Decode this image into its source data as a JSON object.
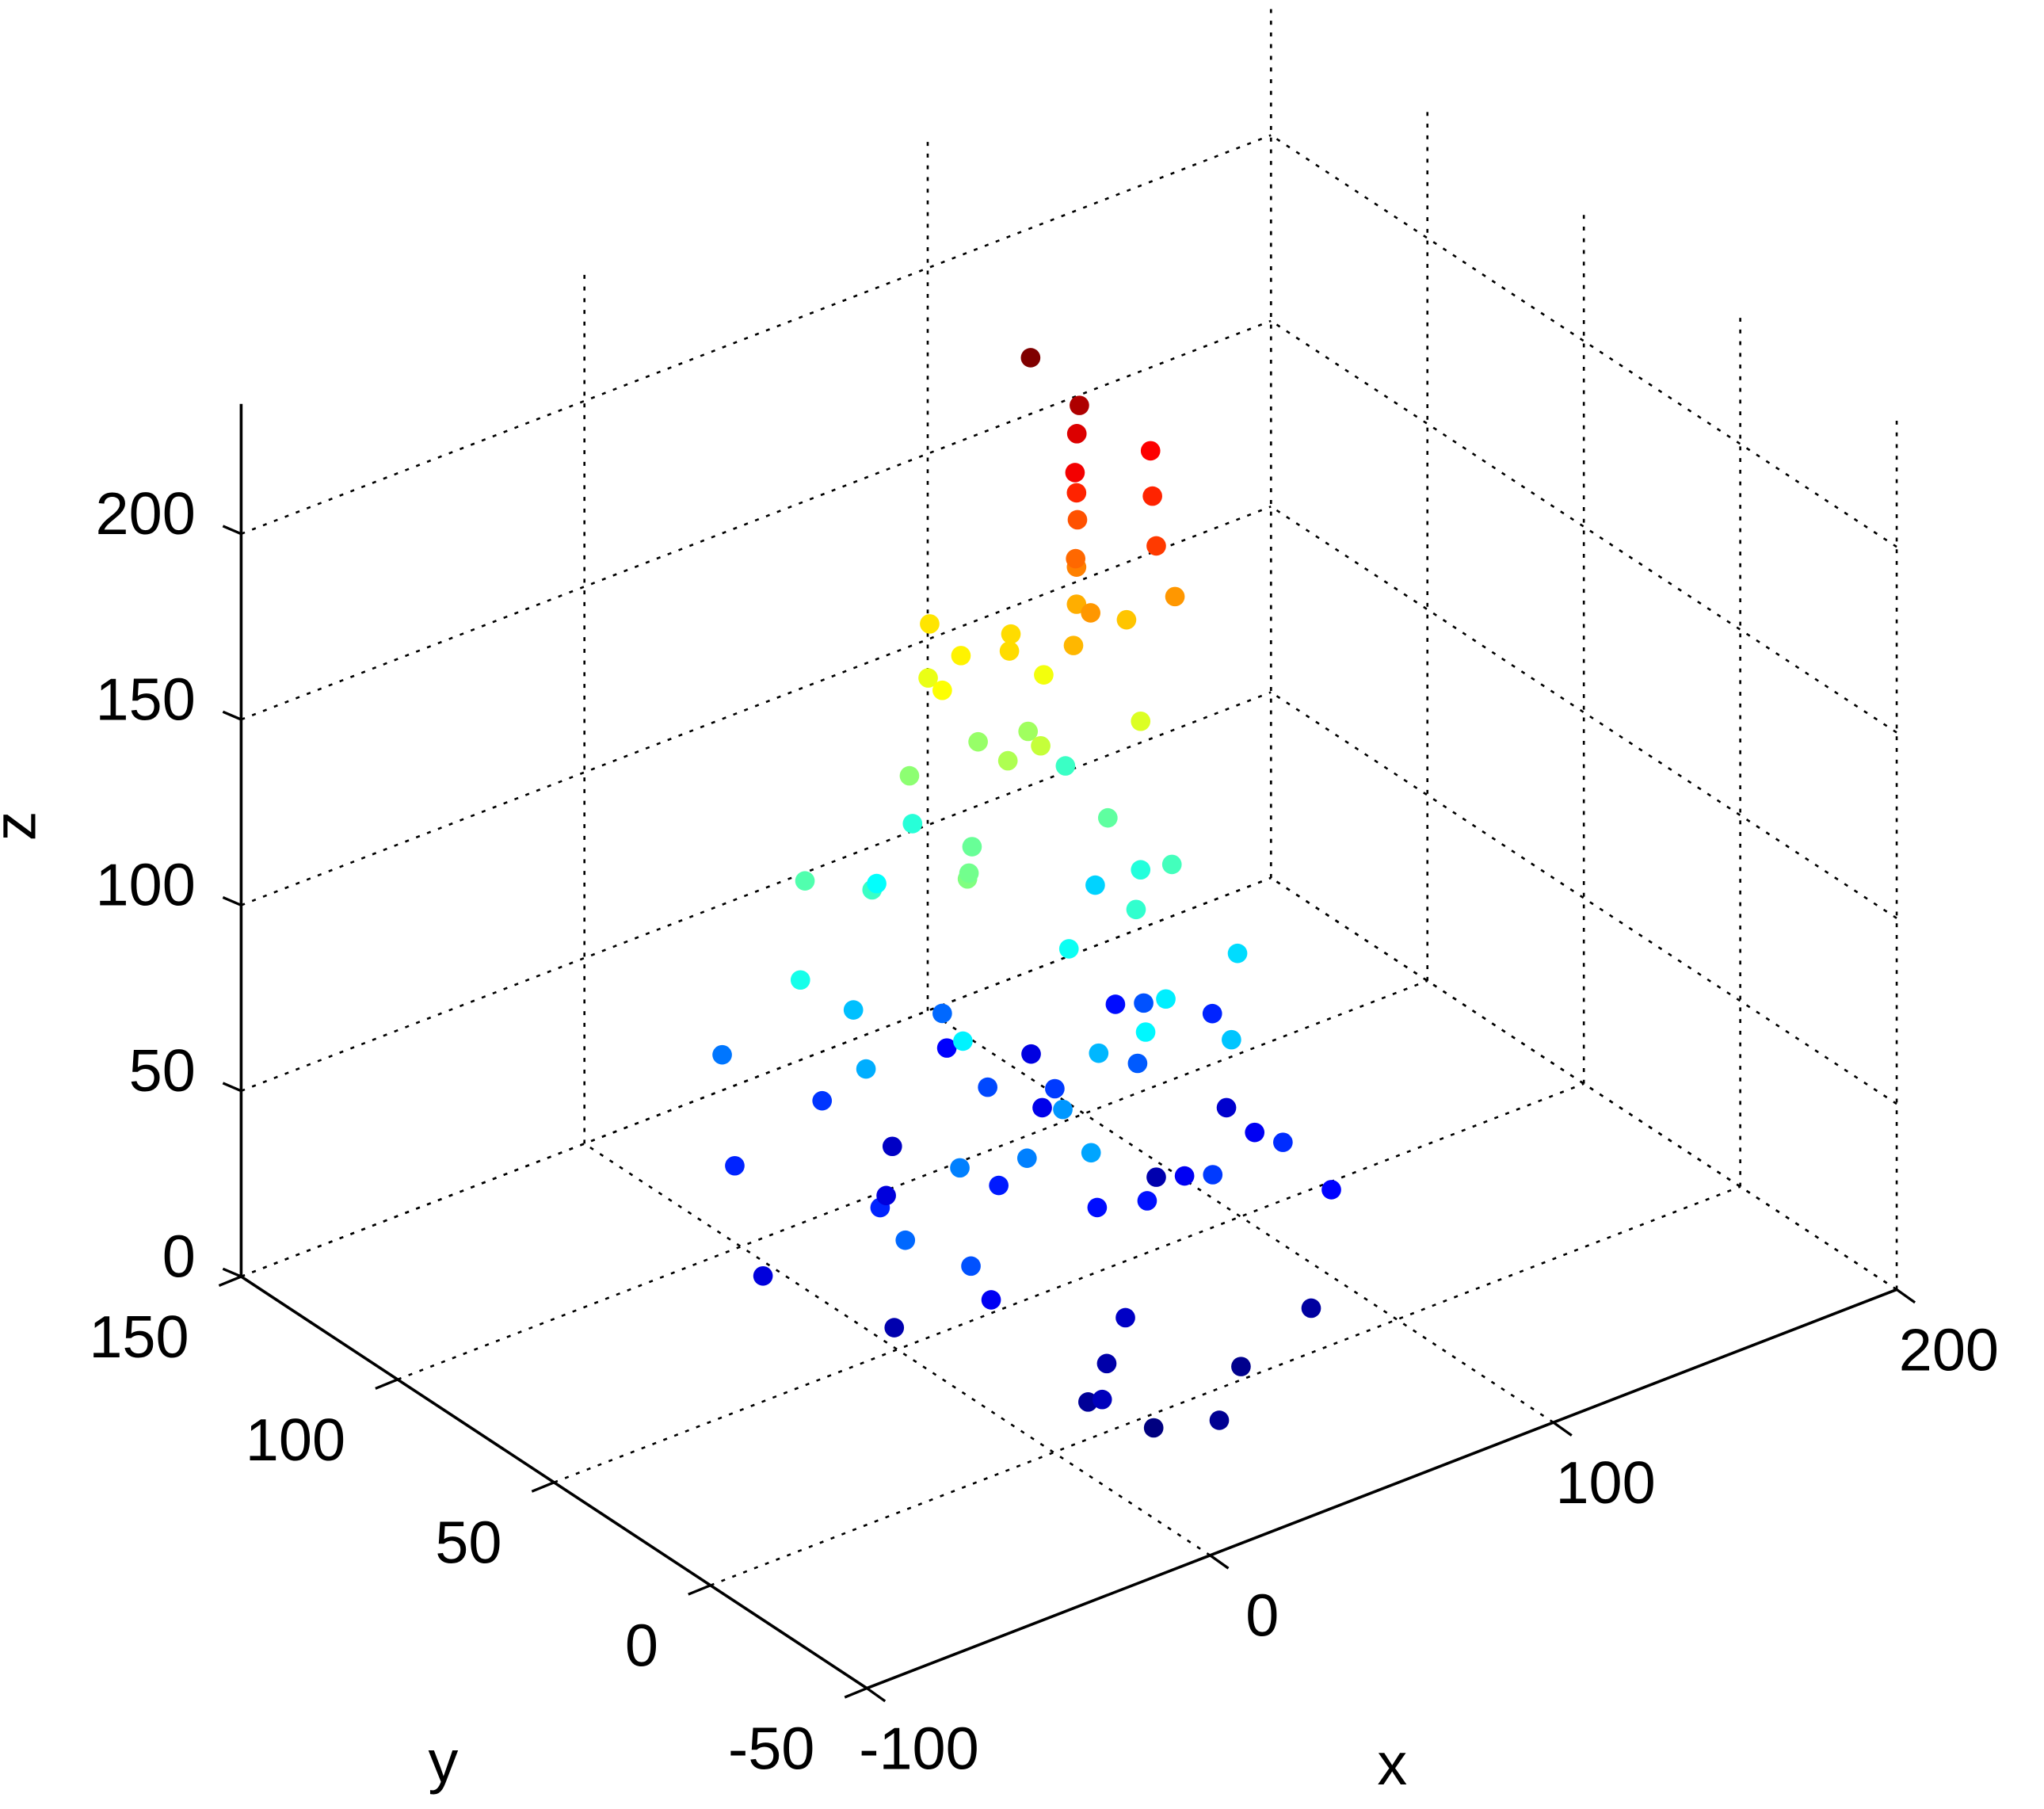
{
  "chart_data": {
    "type": "scatter3d",
    "xlabel": "x",
    "ylabel": "y",
    "zlabel": "z",
    "colormap": "jet",
    "grid": true,
    "xlim": [
      -100,
      200
    ],
    "xticks": [
      -100,
      0,
      100,
      200
    ],
    "ylim": [
      -50,
      150
    ],
    "yticks": [
      -50,
      0,
      50,
      100,
      150
    ],
    "zlim": [
      0,
      235
    ],
    "zticks": [
      0,
      50,
      100,
      150,
      200
    ],
    "x": [
      -30,
      -20,
      -10,
      0,
      10,
      20,
      30,
      40,
      50,
      60,
      70,
      80,
      90,
      100,
      -25,
      -5,
      15,
      35,
      55,
      75,
      95,
      -15,
      5,
      25,
      45,
      65,
      85,
      105,
      0,
      20,
      40,
      60,
      80,
      30,
      50,
      70,
      10,
      90,
      -10,
      110,
      0,
      10,
      20,
      30,
      40,
      50,
      60,
      70,
      80,
      90,
      5,
      15,
      25,
      35,
      45,
      55,
      65,
      75,
      85,
      -10,
      20,
      40,
      60,
      80,
      30,
      50,
      70,
      10,
      90,
      45,
      60,
      70,
      80,
      65,
      75,
      55,
      85,
      50,
      70,
      75,
      78,
      72,
      60,
      90,
      45,
      65,
      80,
      75,
      70,
      76,
      74,
      88,
      92,
      55,
      68
    ],
    "y": [
      60,
      80,
      40,
      20,
      0,
      -10,
      10,
      30,
      -5,
      15,
      35,
      55,
      70,
      90,
      20,
      50,
      70,
      90,
      60,
      0,
      40,
      10,
      -10,
      45,
      85,
      75,
      20,
      60,
      30,
      5,
      65,
      100,
      95,
      -20,
      25,
      50,
      85,
      10,
      95,
      70,
      60,
      40,
      80,
      30,
      70,
      50,
      90,
      20,
      60,
      40,
      85,
      25,
      55,
      95,
      35,
      75,
      45,
      65,
      80,
      70,
      10,
      90,
      30,
      50,
      60,
      100,
      85,
      75,
      95,
      20,
      70,
      80,
      60,
      85,
      75,
      90,
      70,
      95,
      65,
      75,
      78,
      72,
      80,
      60,
      85,
      65,
      55,
      75,
      70,
      76,
      73,
      65,
      70,
      100,
      82
    ],
    "z": [
      25,
      40,
      15,
      30,
      10,
      5,
      20,
      35,
      8,
      45,
      30,
      15,
      50,
      35,
      55,
      40,
      25,
      20,
      45,
      12,
      30,
      50,
      18,
      38,
      55,
      28,
      42,
      22,
      60,
      14,
      48,
      32,
      26,
      9,
      36,
      52,
      44,
      33,
      58,
      40,
      70,
      85,
      100,
      65,
      110,
      90,
      120,
      75,
      95,
      80,
      105,
      60,
      115,
      88,
      72,
      125,
      98,
      108,
      78,
      92,
      68,
      118,
      84,
      102,
      112,
      96,
      122,
      74,
      100,
      86,
      130,
      140,
      135,
      150,
      160,
      145,
      155,
      138,
      165,
      170,
      180,
      175,
      150,
      165,
      142,
      158,
      185,
      190,
      200,
      205,
      215,
      190,
      198,
      148,
      225
    ]
  }
}
